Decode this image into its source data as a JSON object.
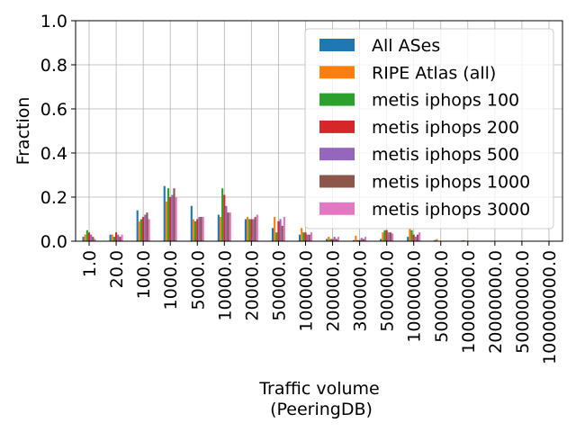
{
  "chart_data": {
    "type": "bar",
    "title": "",
    "xlabel": "Traffic volume",
    "xlabel_line2": "(PeeringDB)",
    "ylabel": "Fraction",
    "ylim": [
      0,
      1.0
    ],
    "yticks": [
      "0.0",
      "0.2",
      "0.4",
      "0.6",
      "0.8",
      "1.0"
    ],
    "grid": "on",
    "legend_position": "upper-right",
    "categories": [
      "1.0",
      "20.0",
      "100.0",
      "1000.0",
      "5000.0",
      "10000.0",
      "20000.0",
      "50000.0",
      "100000.0",
      "200000.0",
      "300000.0",
      "500000.0",
      "1000000.0",
      "5000000.0",
      "10000000.0",
      "20000000.0",
      "50000000.0",
      "100000000.0"
    ],
    "series": [
      {
        "name": "All ASes",
        "color": "#1f77b4",
        "values": [
          0.02,
          0.03,
          0.14,
          0.25,
          0.16,
          0.12,
          0.1,
          0.06,
          0.03,
          0.01,
          0.005,
          0.01,
          0.02,
          0.005,
          0.003,
          0.0,
          0.0,
          0.0
        ]
      },
      {
        "name": "RIPE Atlas (all)",
        "color": "#ff7f0e",
        "values": [
          0.03,
          0.03,
          0.09,
          0.18,
          0.1,
          0.11,
          0.11,
          0.11,
          0.06,
          0.02,
          0.025,
          0.04,
          0.06,
          0.01,
          0.005,
          0.0,
          0.0,
          0.0
        ]
      },
      {
        "name": "metis iphops 100",
        "color": "#2ca02c",
        "values": [
          0.05,
          0.02,
          0.1,
          0.24,
          0.09,
          0.24,
          0.1,
          0.04,
          0.04,
          0.01,
          0.005,
          0.05,
          0.05,
          0.0,
          0.0,
          0.0,
          0.0,
          0.0
        ]
      },
      {
        "name": "metis iphops 200",
        "color": "#d62728",
        "values": [
          0.04,
          0.04,
          0.11,
          0.2,
          0.1,
          0.21,
          0.1,
          0.09,
          0.04,
          0.01,
          0.005,
          0.05,
          0.03,
          0.0,
          0.0,
          0.0,
          0.0,
          0.0
        ]
      },
      {
        "name": "metis iphops 500",
        "color": "#9467bd",
        "values": [
          0.03,
          0.03,
          0.12,
          0.21,
          0.11,
          0.16,
          0.1,
          0.1,
          0.03,
          0.02,
          0.015,
          0.04,
          0.02,
          0.0,
          0.0,
          0.0,
          0.0,
          0.0
        ]
      },
      {
        "name": "metis iphops 1000",
        "color": "#8c564b",
        "values": [
          0.02,
          0.02,
          0.13,
          0.24,
          0.11,
          0.13,
          0.11,
          0.07,
          0.03,
          0.01,
          0.01,
          0.04,
          0.03,
          0.0,
          0.0,
          0.0,
          0.0,
          0.0
        ]
      },
      {
        "name": "metis iphops 3000",
        "color": "#e377c2",
        "values": [
          0.01,
          0.03,
          0.1,
          0.2,
          0.11,
          0.13,
          0.12,
          0.11,
          0.04,
          0.02,
          0.02,
          0.035,
          0.04,
          0.0,
          0.0,
          0.0,
          0.0,
          0.0
        ]
      }
    ]
  }
}
